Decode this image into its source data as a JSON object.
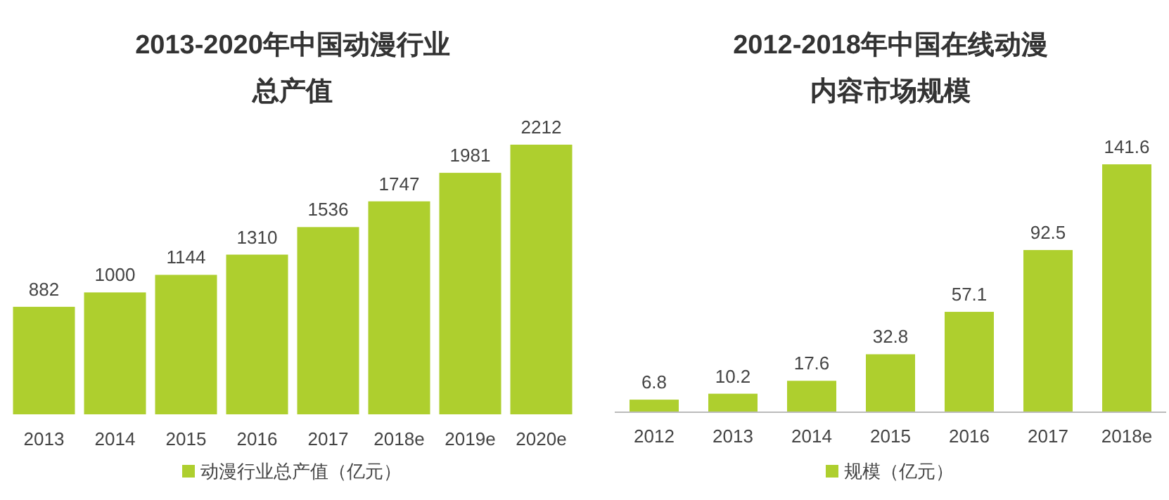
{
  "chart_data": [
    {
      "type": "bar",
      "title": "2013-2020年中国动漫行业总产值",
      "categories": [
        "2013",
        "2014",
        "2015",
        "2016",
        "2017",
        "2018e",
        "2019e",
        "2020e"
      ],
      "series": [
        {
          "name": "动漫行业总产值（亿元）",
          "color": "#aecf2e",
          "values": [
            882,
            1000,
            1144,
            1310,
            1536,
            1747,
            1981,
            2212
          ]
        }
      ],
      "data_labels": true,
      "legend": "bottom"
    },
    {
      "type": "bar",
      "title": "2012-2018年中国在线动漫内容市场规模",
      "categories": [
        "2012",
        "2013",
        "2014",
        "2015",
        "2016",
        "2017",
        "2018e"
      ],
      "series": [
        {
          "name": "规模（亿元）",
          "color": "#aecf2e",
          "values": [
            6.8,
            10.2,
            17.6,
            32.8,
            57.1,
            92.5,
            141.6
          ]
        }
      ],
      "data_labels": true,
      "legend": "bottom"
    }
  ]
}
